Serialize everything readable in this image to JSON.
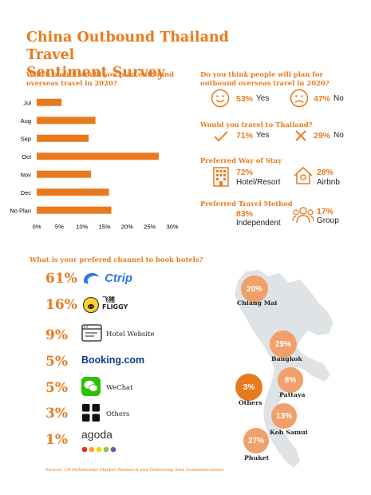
{
  "title_line1": "China Outbound Thailand Travel",
  "title_line2": "Sentiment Survey",
  "month_question": "Which month would you plan outbound overseas travel in 2020?",
  "chart_data": {
    "type": "bar",
    "orientation": "horizontal",
    "categories": [
      "Jul",
      "Aug",
      "Sep",
      "Oct",
      "Nov",
      "Dec",
      "No Plan"
    ],
    "values": [
      5.5,
      13,
      11.5,
      27,
      12,
      16,
      16.5
    ],
    "xlim": [
      0,
      30
    ],
    "xticks": [
      "0%",
      "5%",
      "10%",
      "15%",
      "20%",
      "25%",
      "30%"
    ],
    "xticks_values": [
      0,
      5,
      10,
      15,
      20,
      25,
      30
    ],
    "grid": false,
    "bar_color": "#e87a1e"
  },
  "plan_question": "Do you think people will plan for outbound overseas travel in 2020?",
  "plan_yes_pct": "53%",
  "plan_yes_label": "Yes",
  "plan_no_pct": "47%",
  "plan_no_label": "No",
  "thailand_question": "Would you travel to Thailand?",
  "thailand_yes_pct": "71%",
  "thailand_yes_label": "Yes",
  "thailand_no_pct": "29%",
  "thailand_no_label": "No",
  "stay_question": "Preferred Way of Stay",
  "stay_hotel_pct": "72%",
  "stay_hotel_label": "Hotel/Resort",
  "stay_airbnb_pct": "28%",
  "stay_airbnb_label": "Airbnb",
  "method_question": "Preferred Travel Method",
  "method_independent_pct": "83%",
  "method_independent_label": "Independent",
  "method_group_pct": "17%",
  "method_group_label": "Group",
  "channel_question": "What is your prefered channel to book hotels?",
  "channels": [
    {
      "pct": "61%",
      "label": "Ctrip",
      "icon": "ctrip-logo"
    },
    {
      "pct": "16%",
      "label": "飞猪 FLIGGY",
      "icon": "fliggy-logo"
    },
    {
      "pct": "9%",
      "label": "Hotel Website",
      "icon": "browser-icon"
    },
    {
      "pct": "5%",
      "label": "Booking.com",
      "icon": "booking-logo"
    },
    {
      "pct": "5%",
      "label": "WeChat",
      "icon": "wechat-icon"
    },
    {
      "pct": "3%",
      "label": "Others",
      "icon": "grid-icon"
    },
    {
      "pct": "1%",
      "label": "agoda",
      "icon": "agoda-logo"
    }
  ],
  "destinations": [
    {
      "name": "Chiang Mai",
      "pct": "20%"
    },
    {
      "name": "Bangkok",
      "pct": "29%"
    },
    {
      "name": "Pattaya",
      "pct": "8%"
    },
    {
      "name": "Others",
      "pct": "3%"
    },
    {
      "name": "Koh Samui",
      "pct": "13%"
    },
    {
      "name": "Phuket",
      "pct": "27%"
    }
  ],
  "source": "Source: C9 Hotelworks Market Research and Delivering Asia Communications",
  "colors": {
    "accent": "#e87a1e",
    "bubble_light": "#f0a06a",
    "bubble_dark": "#e87a1e",
    "map": "#dfe3e6"
  }
}
